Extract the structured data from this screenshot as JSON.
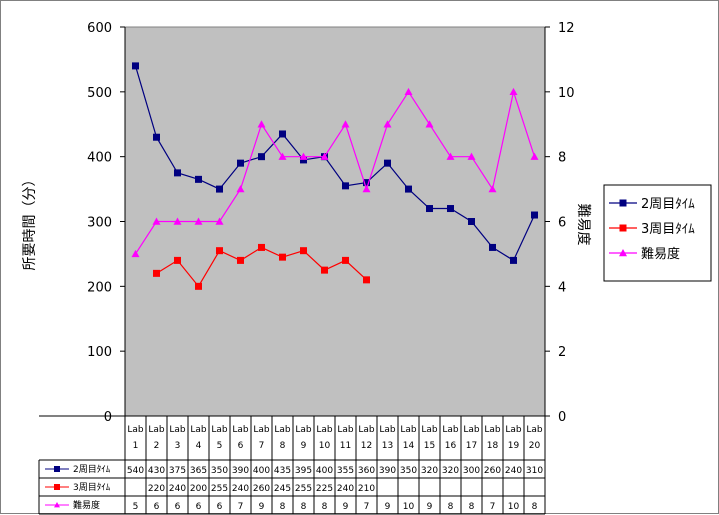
{
  "chart_data": {
    "type": "line",
    "title": "",
    "categories": [
      [
        "Lab",
        "1"
      ],
      [
        "Lab",
        "2"
      ],
      [
        "Lab",
        "3"
      ],
      [
        "Lab",
        "4"
      ],
      [
        "Lab",
        "5"
      ],
      [
        "Lab",
        "6"
      ],
      [
        "Lab",
        "7"
      ],
      [
        "Lab",
        "8"
      ],
      [
        "Lab",
        "9"
      ],
      [
        "Lab",
        "10"
      ],
      [
        "Lab",
        "11"
      ],
      [
        "Lab",
        "12"
      ],
      [
        "Lab",
        "13"
      ],
      [
        "Lab",
        "14"
      ],
      [
        "Lab",
        "15"
      ],
      [
        "Lab",
        "16"
      ],
      [
        "Lab",
        "17"
      ],
      [
        "Lab",
        "18"
      ],
      [
        "Lab",
        "19"
      ],
      [
        "Lab",
        "20"
      ]
    ],
    "ylabel_left": "所要時間（分）",
    "ylabel_right": "難易度",
    "ylim_left": [
      0,
      600
    ],
    "ylim_right": [
      0,
      12
    ],
    "yticks_left": [
      "0",
      "100",
      "200",
      "300",
      "400",
      "500",
      "600"
    ],
    "yticks_right": [
      "0",
      "2",
      "4",
      "6",
      "8",
      "10",
      "12"
    ],
    "plot_background": "#c0c0c0",
    "grid": false,
    "legend_position": "right",
    "series": [
      {
        "name": "2周目ﾀｲﾑ",
        "axis": "left",
        "color": "#000080",
        "marker": "square",
        "values": [
          540,
          430,
          375,
          365,
          350,
          390,
          400,
          435,
          395,
          400,
          355,
          360,
          390,
          350,
          320,
          320,
          300,
          260,
          240,
          310
        ]
      },
      {
        "name": "3周目ﾀｲﾑ",
        "axis": "left",
        "color": "#ff0000",
        "marker": "square",
        "values": [
          null,
          220,
          240,
          200,
          255,
          240,
          260,
          245,
          255,
          225,
          240,
          210,
          null,
          null,
          null,
          null,
          null,
          null,
          null,
          null
        ]
      },
      {
        "name": "難易度",
        "axis": "right",
        "color": "#ff00ff",
        "marker": "triangle",
        "values": [
          5,
          6,
          6,
          6,
          6,
          7,
          9,
          8,
          8,
          8,
          9,
          7,
          9,
          10,
          9,
          8,
          8,
          7,
          10,
          8
        ]
      }
    ]
  }
}
